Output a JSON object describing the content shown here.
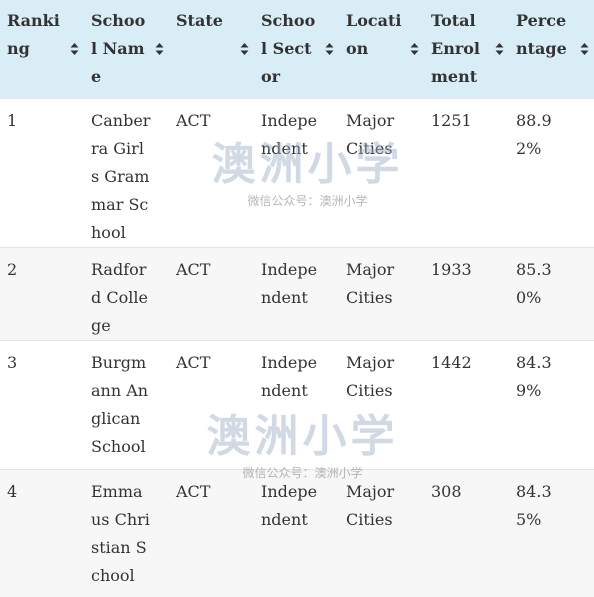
{
  "table": {
    "headers": [
      "Ranking",
      "School Name",
      "State",
      "School Sector",
      "Location",
      "Total Enrolment",
      "Percentage"
    ],
    "rows": [
      [
        "1",
        "Canberra Girls Grammar School",
        "ACT",
        "Independent",
        "Major Cities",
        "1251",
        "88.92%"
      ],
      [
        "2",
        "Radford College",
        "ACT",
        "Independent",
        "Major Cities",
        "1933",
        "85.30%"
      ],
      [
        "3",
        "Burgmann Anglican School",
        "ACT",
        "Independent",
        "Major Cities",
        "1442",
        "84.39%"
      ],
      [
        "4",
        "Emmaus Christian School",
        "ACT",
        "Independent",
        "Major Cities",
        "308",
        "84.35%"
      ]
    ]
  },
  "watermarks": [
    {
      "title": "澳洲小学",
      "subtitle": "微信公众号：澳洲小学"
    },
    {
      "title": "澳洲小学",
      "subtitle": "微信公众号：澳洲小学"
    }
  ]
}
